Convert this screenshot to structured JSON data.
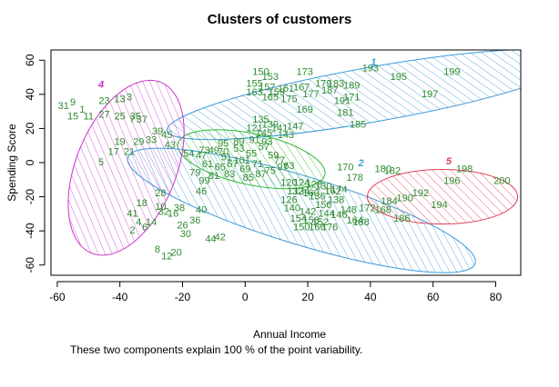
{
  "chart_data": {
    "type": "scatter",
    "title": "Clusters of customers",
    "xlabel": "Annual Income",
    "ylabel": "Spending Score",
    "xlim": [
      -62,
      88
    ],
    "ylim": [
      -66,
      66
    ],
    "x_ticks": [
      -60,
      -40,
      -20,
      0,
      20,
      40,
      60,
      80
    ],
    "y_ticks": [
      -60,
      -40,
      -20,
      0,
      20,
      40,
      60
    ],
    "grid": false,
    "footnote": "These two components explain 100 % of the point variability.",
    "clusters": [
      {
        "label": "1",
        "color": "#3a9ad9",
        "cx": 41,
        "cy": 40,
        "rx": 67,
        "ry": 16,
        "rot": -10
      },
      {
        "label": "2",
        "color": "#3a9ad9",
        "cx": 18,
        "cy": -28,
        "rx": 58,
        "ry": 20,
        "rot": 17
      },
      {
        "label": "3",
        "color": "#2eb82e",
        "cx": 2,
        "cy": 2,
        "rx": 24,
        "ry": 15,
        "rot": 12
      },
      {
        "label": "4",
        "color": "#cc33cc",
        "cx": -38,
        "cy": -3,
        "rx": 16,
        "ry": 54,
        "rot": 22
      },
      {
        "label": "5",
        "color": "#e0405a",
        "cx": 63,
        "cy": -20,
        "rx": 24,
        "ry": 16,
        "rot": 0
      }
    ],
    "points": [
      {
        "label": "193",
        "x": 40,
        "y": 55
      },
      {
        "label": "195",
        "x": 49,
        "y": 50
      },
      {
        "label": "199",
        "x": 66,
        "y": 53
      },
      {
        "label": "197",
        "x": 59,
        "y": 40
      },
      {
        "label": "150",
        "x": 5,
        "y": 53
      },
      {
        "label": "153",
        "x": 8,
        "y": 50
      },
      {
        "label": "173",
        "x": 19,
        "y": 53
      },
      {
        "label": "179",
        "x": 25,
        "y": 46
      },
      {
        "label": "183",
        "x": 29,
        "y": 46
      },
      {
        "label": "189",
        "x": 34,
        "y": 45
      },
      {
        "label": "171",
        "x": 34,
        "y": 38
      },
      {
        "label": "167",
        "x": 18,
        "y": 44
      },
      {
        "label": "175",
        "x": 14,
        "y": 37
      },
      {
        "label": "169",
        "x": 19,
        "y": 31
      },
      {
        "label": "181",
        "x": 32,
        "y": 29
      },
      {
        "label": "185",
        "x": 36,
        "y": 22
      },
      {
        "label": "135",
        "x": 5,
        "y": 25
      },
      {
        "label": "141",
        "x": 11,
        "y": 20
      },
      {
        "label": "143",
        "x": 13,
        "y": 16
      },
      {
        "label": "121",
        "x": 3,
        "y": 20
      },
      {
        "label": "23",
        "x": -45,
        "y": 36
      },
      {
        "label": "13",
        "x": -40,
        "y": 37
      },
      {
        "label": "3",
        "x": -37,
        "y": 38
      },
      {
        "label": "9",
        "x": -55,
        "y": 35
      },
      {
        "label": "31",
        "x": -58,
        "y": 33
      },
      {
        "label": "15",
        "x": -55,
        "y": 27
      },
      {
        "label": "25",
        "x": -40,
        "y": 27
      },
      {
        "label": "35",
        "x": -35,
        "y": 27
      },
      {
        "label": "11",
        "x": -50,
        "y": 27
      },
      {
        "label": "7",
        "x": -36,
        "y": 25
      },
      {
        "label": "37",
        "x": -33,
        "y": 25
      },
      {
        "label": "19",
        "x": -40,
        "y": 12
      },
      {
        "label": "29",
        "x": -34,
        "y": 12
      },
      {
        "label": "39",
        "x": -28,
        "y": 18
      },
      {
        "label": "45",
        "x": -25,
        "y": 16
      },
      {
        "label": "43",
        "x": -24,
        "y": 10
      },
      {
        "label": "17",
        "x": -42,
        "y": 6
      },
      {
        "label": "21",
        "x": -37,
        "y": 6
      },
      {
        "label": "5",
        "x": -46,
        "y": 0
      },
      {
        "label": "28",
        "x": -27,
        "y": -18
      },
      {
        "label": "18",
        "x": -33,
        "y": -24
      },
      {
        "label": "32",
        "x": -26,
        "y": -29
      },
      {
        "label": "38",
        "x": -21,
        "y": -27
      },
      {
        "label": "40",
        "x": -14,
        "y": -28
      },
      {
        "label": "4",
        "x": -34,
        "y": -35
      },
      {
        "label": "14",
        "x": -30,
        "y": -35
      },
      {
        "label": "26",
        "x": -20,
        "y": -37
      },
      {
        "label": "36",
        "x": -16,
        "y": -34
      },
      {
        "label": "2",
        "x": -36,
        "y": -40
      },
      {
        "label": "20",
        "x": -22,
        "y": -53
      },
      {
        "label": "12",
        "x": -25,
        "y": -55
      },
      {
        "label": "8",
        "x": -28,
        "y": -51
      },
      {
        "label": "30",
        "x": -19,
        "y": -42
      },
      {
        "label": "44",
        "x": -11,
        "y": -45
      },
      {
        "label": "42",
        "x": -8,
        "y": -44
      },
      {
        "label": "46",
        "x": -14,
        "y": -17
      },
      {
        "label": "54",
        "x": -18,
        "y": 5
      },
      {
        "label": "73",
        "x": -13,
        "y": 7
      },
      {
        "label": "70",
        "x": -7,
        "y": 6
      },
      {
        "label": "63",
        "x": 14,
        "y": -2
      },
      {
        "label": "170",
        "x": 32,
        "y": -3
      },
      {
        "label": "178",
        "x": 35,
        "y": -9
      },
      {
        "label": "180",
        "x": 44,
        "y": -4
      },
      {
        "label": "182",
        "x": 47,
        "y": -5
      },
      {
        "label": "198",
        "x": 70,
        "y": -4
      },
      {
        "label": "196",
        "x": 66,
        "y": -11
      },
      {
        "label": "200",
        "x": 82,
        "y": -11
      },
      {
        "label": "194",
        "x": 62,
        "y": -25
      },
      {
        "label": "190",
        "x": 51,
        "y": -21
      },
      {
        "label": "184",
        "x": 46,
        "y": -23
      },
      {
        "label": "186",
        "x": 50,
        "y": -33
      },
      {
        "label": "174",
        "x": 30,
        "y": -16
      },
      {
        "label": "162",
        "x": 28,
        "y": -17
      },
      {
        "label": "164",
        "x": 35,
        "y": -34
      },
      {
        "label": "172",
        "x": 39,
        "y": -27
      },
      {
        "label": "188",
        "x": 37,
        "y": -35
      },
      {
        "label": "176",
        "x": 27,
        "y": -38
      },
      {
        "label": "166",
        "x": 23,
        "y": -38
      },
      {
        "label": "158",
        "x": 21,
        "y": -34
      },
      {
        "label": "154",
        "x": 17,
        "y": -33
      },
      {
        "label": "156",
        "x": 25,
        "y": -25
      },
      {
        "label": "160",
        "x": 21,
        "y": -18
      },
      {
        "label": "126",
        "x": 14,
        "y": -22
      },
      {
        "label": "134",
        "x": 18,
        "y": -17
      }
    ],
    "dense": [
      {
        "cluster": 0,
        "label": "155",
        "x": 3,
        "y": 46
      },
      {
        "cluster": 0,
        "label": "157",
        "x": 7,
        "y": 44
      },
      {
        "cluster": 0,
        "label": "159",
        "x": 10,
        "y": 41
      },
      {
        "cluster": 0,
        "label": "161",
        "x": 13,
        "y": 43
      },
      {
        "cluster": 0,
        "label": "163",
        "x": 3,
        "y": 41
      },
      {
        "cluster": 0,
        "label": "165",
        "x": 8,
        "y": 38
      },
      {
        "cluster": 0,
        "label": "177",
        "x": 21,
        "y": 40
      },
      {
        "cluster": 0,
        "label": "187",
        "x": 27,
        "y": 42
      },
      {
        "cluster": 0,
        "label": "191",
        "x": 31,
        "y": 36
      },
      {
        "cluster": 0,
        "label": "139",
        "x": 8,
        "y": 22
      },
      {
        "cluster": 0,
        "label": "145",
        "x": 6,
        "y": 17
      },
      {
        "cluster": 0,
        "label": "147",
        "x": 16,
        "y": 21
      },
      {
        "cluster": 1,
        "label": "120",
        "x": 14,
        "y": -12
      },
      {
        "cluster": 1,
        "label": "124",
        "x": 18,
        "y": -12
      },
      {
        "cluster": 1,
        "label": "128",
        "x": 22,
        "y": -13
      },
      {
        "cluster": 1,
        "label": "130",
        "x": 25,
        "y": -14
      },
      {
        "cluster": 1,
        "label": "132",
        "x": 16,
        "y": -17
      },
      {
        "cluster": 1,
        "label": "136",
        "x": 23,
        "y": -20
      },
      {
        "cluster": 1,
        "label": "138",
        "x": 29,
        "y": -22
      },
      {
        "cluster": 1,
        "label": "140",
        "x": 15,
        "y": -27
      },
      {
        "cluster": 1,
        "label": "142",
        "x": 20,
        "y": -29
      },
      {
        "cluster": 1,
        "label": "144",
        "x": 26,
        "y": -30
      },
      {
        "cluster": 1,
        "label": "146",
        "x": 30,
        "y": -31
      },
      {
        "cluster": 1,
        "label": "148",
        "x": 33,
        "y": -28
      },
      {
        "cluster": 1,
        "label": "150",
        "x": 18,
        "y": -38
      },
      {
        "cluster": 1,
        "label": "152",
        "x": 24,
        "y": -35
      },
      {
        "cluster": 2,
        "label": "47",
        "x": -14,
        "y": 4
      },
      {
        "cluster": 2,
        "label": "49",
        "x": -10,
        "y": 7
      },
      {
        "cluster": 2,
        "label": "51",
        "x": -6,
        "y": 3
      },
      {
        "cluster": 2,
        "label": "53",
        "x": -2,
        "y": 8
      },
      {
        "cluster": 2,
        "label": "55",
        "x": 2,
        "y": 5
      },
      {
        "cluster": 2,
        "label": "57",
        "x": 6,
        "y": 9
      },
      {
        "cluster": 2,
        "label": "59",
        "x": 9,
        "y": 4
      },
      {
        "cluster": 2,
        "label": "61",
        "x": -12,
        "y": -1
      },
      {
        "cluster": 2,
        "label": "65",
        "x": -8,
        "y": -3
      },
      {
        "cluster": 2,
        "label": "67",
        "x": -4,
        "y": -1
      },
      {
        "cluster": 2,
        "label": "69",
        "x": 0,
        "y": -4
      },
      {
        "cluster": 2,
        "label": "71",
        "x": 4,
        "y": -1
      },
      {
        "cluster": 2,
        "label": "75",
        "x": 8,
        "y": -5
      },
      {
        "cluster": 2,
        "label": "77",
        "x": 11,
        "y": 1
      },
      {
        "cluster": 2,
        "label": "79",
        "x": -16,
        "y": -6
      },
      {
        "cluster": 2,
        "label": "81",
        "x": -10,
        "y": -8
      },
      {
        "cluster": 2,
        "label": "83",
        "x": -5,
        "y": -7
      },
      {
        "cluster": 2,
        "label": "85",
        "x": 1,
        "y": -9
      },
      {
        "cluster": 2,
        "label": "87",
        "x": 5,
        "y": -7
      },
      {
        "cluster": 2,
        "label": "89",
        "x": -2,
        "y": 12
      },
      {
        "cluster": 2,
        "label": "91",
        "x": 3,
        "y": 13
      },
      {
        "cluster": 2,
        "label": "93",
        "x": 7,
        "y": 12
      },
      {
        "cluster": 2,
        "label": "95",
        "x": -7,
        "y": 11
      },
      {
        "cluster": 2,
        "label": "97",
        "x": 12,
        "y": -3
      },
      {
        "cluster": 2,
        "label": "99",
        "x": -13,
        "y": -11
      },
      {
        "cluster": 2,
        "label": "101",
        "x": -1,
        "y": 1
      },
      {
        "cluster": 3,
        "label": "1",
        "x": -52,
        "y": 31
      },
      {
        "cluster": 3,
        "label": "27",
        "x": -45,
        "y": 28
      },
      {
        "cluster": 3,
        "label": "33",
        "x": -30,
        "y": 13
      },
      {
        "cluster": 3,
        "label": "41",
        "x": -36,
        "y": -30
      },
      {
        "cluster": 3,
        "label": "6",
        "x": -32,
        "y": -38
      },
      {
        "cluster": 3,
        "label": "10",
        "x": -27,
        "y": -26
      },
      {
        "cluster": 3,
        "label": "16",
        "x": -23,
        "y": -30
      },
      {
        "cluster": 4,
        "label": "192",
        "x": 56,
        "y": -18
      },
      {
        "cluster": 4,
        "label": "168",
        "x": 44,
        "y": -28
      }
    ]
  }
}
